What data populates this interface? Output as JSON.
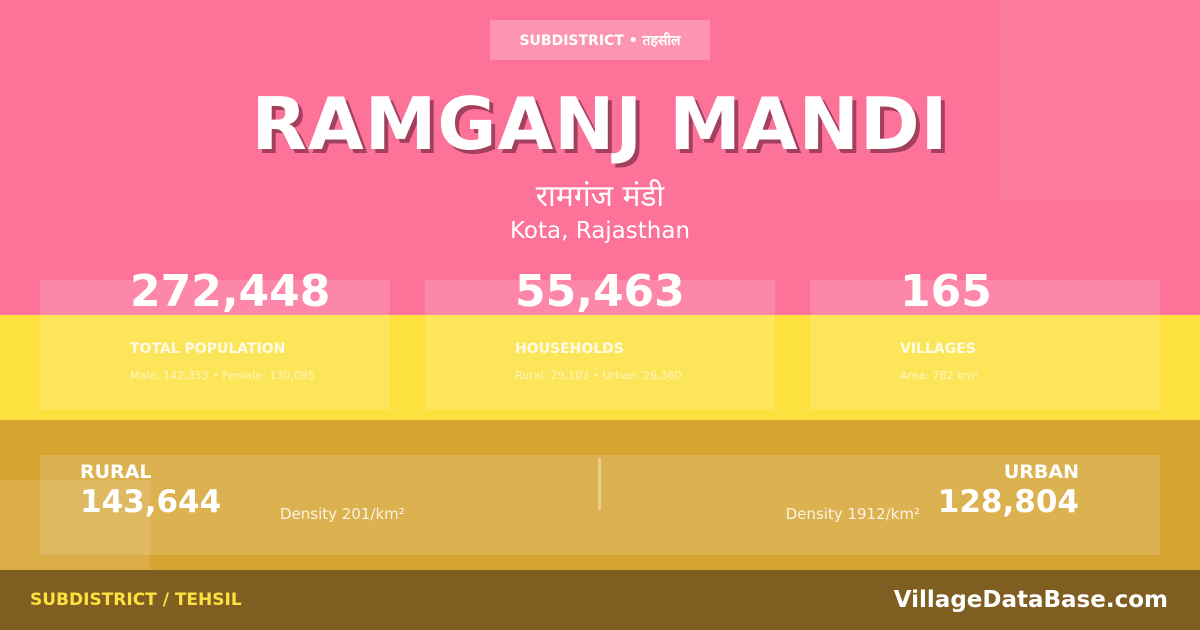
{
  "badge": "SUBDISTRICT • तहसील",
  "title": "RAMGANJ MANDI",
  "title_hindi": "रामगंज मंडी",
  "location": "Kota, Rajasthan",
  "stats": [
    {
      "value": "272,448",
      "label": "TOTAL POPULATION",
      "detail": "Male: 142,353 • Female: 130,095"
    },
    {
      "value": "55,463",
      "label": "HOUSEHOLDS",
      "detail": "Rural: 29,103 • Urban: 26,360"
    },
    {
      "value": "165",
      "label": "VILLAGES",
      "detail": "Area: 782 km²"
    }
  ],
  "rural": {
    "label": "RURAL",
    "value": "143,644",
    "density": "Density 201/km²"
  },
  "urban": {
    "label": "URBAN",
    "value": "128,804",
    "density": "Density 1912/km²"
  },
  "footer": {
    "left": "SUBDISTRICT / TEHSIL",
    "right": "VillageDataBase.com"
  },
  "colors": {
    "pink": "#fd7299",
    "yellow": "#fde13e",
    "mustard": "#d6a431",
    "footer": "#7f5e22"
  }
}
